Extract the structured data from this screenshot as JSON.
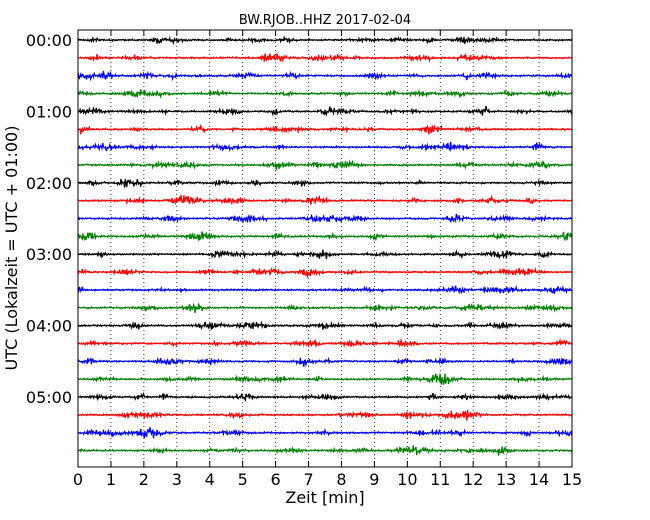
{
  "chart_data": {
    "type": "line",
    "title": "BW.RJOB..HHZ 2017-02-04",
    "xlabel": "Zeit  [min]",
    "ylabel": "UTC (Lokalzeit = UTC + 01:00)",
    "xlim": [
      0,
      15
    ],
    "x_ticks": [
      "0",
      "1",
      "2",
      "3",
      "4",
      "5",
      "6",
      "7",
      "8",
      "9",
      "10",
      "11",
      "12",
      "13",
      "14",
      "15"
    ],
    "y_tick_labels": [
      "00:00",
      "01:00",
      "02:00",
      "03:00",
      "04:00",
      "05:00"
    ],
    "trace_interval_minutes": 15,
    "trace_count": 24,
    "trace_colors": [
      "#000000",
      "#ff0000",
      "#0000ff",
      "#008000"
    ],
    "grid": "vertical dotted lines at each minute",
    "legend": "none"
  }
}
